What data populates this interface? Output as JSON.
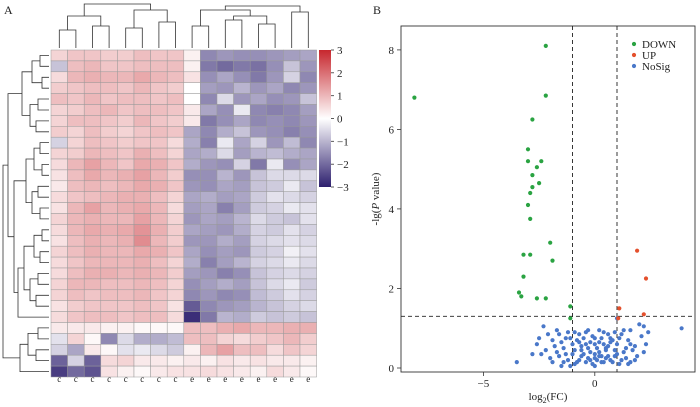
{
  "panels": {
    "a_label": "A",
    "b_label": "B"
  },
  "chart_data": [
    {
      "type": "heatmap",
      "title": "",
      "rows": 30,
      "columns": 16,
      "column_labels": [
        "c",
        "c",
        "c",
        "c",
        "c",
        "c",
        "c",
        "c",
        "e",
        "e",
        "e",
        "e",
        "e",
        "e",
        "e",
        "e"
      ],
      "colorbar": {
        "min": -3,
        "max": 3,
        "ticks": [
          3,
          2,
          1,
          0,
          -1,
          -2,
          -3
        ],
        "tick_labels": [
          "3",
          "2",
          "1",
          "0",
          "−1",
          "−2",
          "−3"
        ]
      },
      "colors": {
        "low": "#2d1f6e",
        "mid": "#ffffff",
        "high": "#c7272e"
      },
      "values": [
        [
          0.6,
          0.8,
          0.8,
          0.7,
          0.7,
          0.9,
          0.8,
          0.8,
          0.2,
          -1.6,
          -1.4,
          -1.5,
          -1.5,
          -1.4,
          -1.3,
          -1.2
        ],
        [
          -0.8,
          0.9,
          1.0,
          0.8,
          0.8,
          0.9,
          0.9,
          0.9,
          0.2,
          -1.8,
          -2.0,
          -1.8,
          -1.9,
          -1.5,
          -0.8,
          -1.4
        ],
        [
          0.5,
          1.0,
          1.1,
          1.0,
          1.0,
          1.2,
          1.0,
          0.9,
          0.4,
          -1.5,
          -1.2,
          -1.5,
          -1.8,
          -1.4,
          -0.6,
          -1.6
        ],
        [
          0.7,
          0.8,
          0.9,
          0.9,
          0.8,
          1.0,
          0.8,
          0.7,
          0.0,
          -1.3,
          -1.4,
          -1.0,
          -1.4,
          -1.2,
          -1.6,
          -1.4
        ],
        [
          0.9,
          0.8,
          1.0,
          0.8,
          0.9,
          0.9,
          0.8,
          0.9,
          0.0,
          -1.6,
          -0.5,
          -1.4,
          -1.2,
          -1.5,
          -1.4,
          -0.8
        ],
        [
          0.6,
          0.7,
          0.9,
          1.0,
          0.8,
          0.9,
          0.9,
          0.8,
          0.3,
          -1.2,
          -1.5,
          -0.3,
          -1.6,
          -1.7,
          -1.6,
          -1.3
        ],
        [
          0.6,
          0.9,
          0.9,
          0.8,
          0.7,
          1.0,
          0.8,
          0.7,
          0.3,
          -1.8,
          -1.5,
          -1.2,
          -1.6,
          -1.5,
          -1.6,
          -1.4
        ],
        [
          0.7,
          0.6,
          0.9,
          0.7,
          0.6,
          0.8,
          0.9,
          0.8,
          -1.2,
          -1.6,
          -1.1,
          -0.8,
          -1.4,
          -1.5,
          -1.7,
          -1.5
        ],
        [
          -0.6,
          0.6,
          0.9,
          0.8,
          0.7,
          0.8,
          0.8,
          0.5,
          -1.1,
          -1.7,
          -0.3,
          -1.2,
          -0.6,
          -1.4,
          -0.9,
          -1.6
        ],
        [
          0.6,
          0.7,
          1.0,
          0.9,
          0.8,
          1.1,
          0.9,
          0.6,
          -1.2,
          -1.1,
          -0.5,
          -1.3,
          -1.0,
          -0.9,
          -1.1,
          -1.2
        ],
        [
          0.5,
          1.0,
          1.3,
          1.0,
          0.8,
          1.2,
          1.1,
          0.8,
          -1.1,
          -1.4,
          -1.5,
          -0.6,
          -1.8,
          -0.3,
          -1.5,
          -1.2
        ],
        [
          0.4,
          0.9,
          1.2,
          1.0,
          1.1,
          1.3,
          1.0,
          0.7,
          -1.5,
          -1.5,
          -1.0,
          -1.4,
          -0.8,
          -0.5,
          -0.5,
          -0.5
        ],
        [
          0.3,
          0.9,
          1.0,
          0.9,
          1.0,
          1.2,
          1.1,
          0.8,
          -1.4,
          -1.5,
          -1.2,
          -1.3,
          -0.8,
          -0.7,
          -0.3,
          -0.8
        ],
        [
          0.5,
          0.8,
          0.9,
          1.0,
          1.1,
          1.1,
          0.9,
          0.6,
          -1.2,
          -1.1,
          -1.3,
          -1.2,
          -0.7,
          -0.4,
          -0.5,
          -0.6
        ],
        [
          0.4,
          1.0,
          1.3,
          1.0,
          1.1,
          1.2,
          1.0,
          0.5,
          -1.3,
          -1.2,
          -1.7,
          -1.3,
          -0.7,
          -0.6,
          -0.3,
          -0.4
        ],
        [
          0.6,
          1.0,
          1.1,
          1.0,
          1.0,
          1.3,
          1.0,
          0.6,
          -1.4,
          -1.2,
          -1.3,
          -1.0,
          -0.5,
          -0.7,
          -0.8,
          -0.4
        ],
        [
          0.5,
          1.0,
          1.2,
          1.1,
          1.2,
          1.5,
          1.1,
          0.7,
          -1.2,
          -1.3,
          -1.4,
          -1.1,
          -0.6,
          -0.7,
          -0.4,
          -0.6
        ],
        [
          0.4,
          0.9,
          1.1,
          1.0,
          1.1,
          1.6,
          1.0,
          0.7,
          -1.4,
          -1.4,
          -1.1,
          -1.3,
          -0.6,
          -0.5,
          -0.4,
          -0.5
        ],
        [
          0.6,
          0.9,
          1.1,
          1.0,
          1.0,
          1.2,
          1.1,
          0.8,
          -1.2,
          -1.5,
          -1.3,
          -1.4,
          -0.7,
          -0.6,
          -0.2,
          -0.4
        ],
        [
          0.5,
          0.8,
          1.0,
          1.0,
          1.0,
          1.1,
          0.9,
          0.6,
          -1.1,
          -1.7,
          -1.3,
          -1.0,
          -0.6,
          -0.5,
          -0.3,
          -0.5
        ],
        [
          0.5,
          0.9,
          1.1,
          1.1,
          1.0,
          1.1,
          1.0,
          0.7,
          -1.3,
          -1.4,
          -1.7,
          -1.5,
          -0.8,
          -0.6,
          -0.5,
          -0.6
        ],
        [
          0.6,
          1.0,
          1.0,
          0.9,
          0.9,
          1.0,
          0.9,
          0.6,
          -1.5,
          -1.3,
          -1.1,
          -1.3,
          -0.8,
          -0.5,
          -0.3,
          -0.7
        ],
        [
          0.6,
          0.9,
          0.8,
          0.9,
          0.9,
          1.0,
          0.8,
          0.6,
          -1.6,
          -1.4,
          -1.6,
          -1.5,
          -0.9,
          -0.7,
          -0.4,
          -0.6
        ],
        [
          0.4,
          0.7,
          0.8,
          0.8,
          0.8,
          0.9,
          0.8,
          0.4,
          -2.2,
          -1.6,
          -1.4,
          -1.3,
          -1.0,
          -0.8,
          -0.6,
          -0.5
        ],
        [
          0.5,
          0.8,
          0.9,
          0.9,
          0.8,
          0.9,
          0.9,
          0.5,
          -2.8,
          -1.8,
          -1.0,
          -1.1,
          -0.7,
          -0.8,
          -0.7,
          -0.8
        ],
        [
          0.3,
          0.3,
          0.3,
          0.2,
          0.2,
          0.1,
          0.1,
          0.1,
          0.9,
          0.9,
          1.1,
          1.2,
          1.0,
          1.0,
          1.1,
          1.1
        ],
        [
          -0.4,
          0.6,
          0.1,
          -1.6,
          -0.5,
          -1.1,
          -1.1,
          -0.9,
          0.9,
          0.9,
          0.6,
          0.5,
          0.7,
          0.8,
          1.0,
          0.7
        ],
        [
          -0.6,
          -1.2,
          0.3,
          0.1,
          -0.4,
          -0.3,
          -0.5,
          -0.7,
          0.2,
          1.0,
          1.3,
          0.9,
          0.9,
          0.5,
          0.8,
          0.6
        ],
        [
          -2.1,
          -0.6,
          -2.1,
          0.5,
          0.6,
          0.3,
          0.3,
          0.2,
          0.3,
          0.2,
          0.4,
          0.3,
          0.4,
          0.3,
          0.3,
          0.2
        ],
        [
          -2.6,
          -2.0,
          -2.3,
          0.4,
          0.2,
          0.1,
          0.3,
          0.4,
          0.4,
          0.5,
          0.4,
          0.3,
          0.2,
          0.5,
          0.3,
          0.1
        ]
      ]
    },
    {
      "type": "scatter",
      "title": "",
      "xlabel": "log2(FC)",
      "ylabel": "-lg(P value)",
      "xlim": [
        -8.7,
        4.5
      ],
      "ylim": [
        -0.1,
        8.6
      ],
      "xticks": [
        -5,
        0
      ],
      "yticks": [
        0,
        2,
        4,
        6,
        8
      ],
      "thresholds": {
        "x": [
          -1,
          1
        ],
        "y": 1.3
      },
      "legend_position": "top-right",
      "series": [
        {
          "name": "DOWN",
          "color": "#2aa342",
          "points": [
            [
              -8.1,
              6.8
            ],
            [
              -2.2,
              8.1
            ],
            [
              -2.2,
              6.85
            ],
            [
              -2.8,
              6.25
            ],
            [
              -2.4,
              5.2
            ],
            [
              -2.6,
              5.05
            ],
            [
              -3.0,
              5.5
            ],
            [
              -3.0,
              5.2
            ],
            [
              -2.8,
              4.85
            ],
            [
              -2.5,
              4.65
            ],
            [
              -2.8,
              4.55
            ],
            [
              -2.9,
              4.4
            ],
            [
              -3.0,
              4.1
            ],
            [
              -2.9,
              3.75
            ],
            [
              -3.2,
              2.85
            ],
            [
              -2.9,
              2.85
            ],
            [
              -2.0,
              3.15
            ],
            [
              -1.9,
              2.7
            ],
            [
              -3.2,
              2.3
            ],
            [
              -3.4,
              1.9
            ],
            [
              -2.2,
              1.75
            ],
            [
              -2.6,
              1.75
            ],
            [
              -3.3,
              1.8
            ],
            [
              -1.1,
              1.55
            ],
            [
              -1.1,
              1.25
            ]
          ]
        },
        {
          "name": "UP",
          "color": "#e4502d",
          "points": [
            [
              1.9,
              2.95
            ],
            [
              2.3,
              2.25
            ],
            [
              2.2,
              1.35
            ],
            [
              1.1,
              1.5
            ],
            [
              1.05,
              1.25
            ]
          ]
        },
        {
          "name": "NoSig",
          "color": "#4a78c9",
          "points": [
            [
              3.9,
              1.0
            ],
            [
              2.2,
              1.05
            ],
            [
              2.0,
              1.1
            ],
            [
              1.3,
              0.95
            ],
            [
              1.0,
              1.25
            ],
            [
              0.7,
              0.75
            ],
            [
              0.5,
              0.5
            ],
            [
              0.2,
              0.3
            ],
            [
              -0.2,
              0.2
            ],
            [
              -0.6,
              0.45
            ],
            [
              -1.2,
              0.9
            ],
            [
              -1.7,
              0.95
            ],
            [
              -2.3,
              1.05
            ],
            [
              -2.1,
              0.85
            ],
            [
              -1.9,
              0.7
            ],
            [
              -2.5,
              0.75
            ],
            [
              -3.5,
              0.15
            ],
            [
              -2.8,
              0.35
            ],
            [
              -1.5,
              0.05
            ],
            [
              -0.9,
              0.1
            ],
            [
              0.0,
              0.05
            ],
            [
              0.3,
              0.15
            ],
            [
              0.9,
              0.3
            ],
            [
              1.4,
              0.25
            ],
            [
              1.6,
              0.15
            ],
            [
              2.1,
              0.8
            ],
            [
              2.4,
              0.9
            ],
            [
              -0.3,
              0.95
            ],
            [
              0.2,
              0.95
            ],
            [
              -0.7,
              0.85
            ],
            [
              0.6,
              0.85
            ],
            [
              0.0,
              0.6
            ],
            [
              -0.4,
              0.6
            ],
            [
              0.4,
              0.6
            ],
            [
              -1.0,
              0.6
            ],
            [
              1.0,
              0.6
            ],
            [
              -1.4,
              0.5
            ],
            [
              1.4,
              0.5
            ],
            [
              -0.2,
              0.4
            ],
            [
              0.2,
              0.4
            ],
            [
              -0.6,
              0.3
            ],
            [
              0.6,
              0.3
            ],
            [
              -1.0,
              0.35
            ],
            [
              1.0,
              0.35
            ],
            [
              -1.6,
              0.3
            ],
            [
              1.7,
              0.45
            ],
            [
              0.0,
              0.25
            ],
            [
              -0.4,
              0.15
            ],
            [
              0.4,
              0.15
            ],
            [
              -1.2,
              0.2
            ],
            [
              1.2,
              0.2
            ],
            [
              -0.8,
              0.7
            ],
            [
              0.8,
              0.7
            ],
            [
              -1.8,
              0.55
            ],
            [
              1.8,
              0.55
            ],
            [
              -2.2,
              0.45
            ],
            [
              -0.1,
              0.8
            ],
            [
              0.3,
              0.75
            ],
            [
              -0.5,
              0.75
            ],
            [
              1.2,
              0.85
            ],
            [
              -1.3,
              0.75
            ],
            [
              0.1,
              0.5
            ],
            [
              -0.3,
              0.5
            ],
            [
              0.5,
              0.45
            ],
            [
              -0.9,
              0.45
            ],
            [
              0.9,
              0.45
            ],
            [
              -1.5,
              0.65
            ],
            [
              1.5,
              0.7
            ],
            [
              0.0,
              0.35
            ],
            [
              -0.7,
              0.2
            ],
            [
              0.7,
              0.2
            ],
            [
              -1.1,
              0.05
            ],
            [
              1.1,
              0.1
            ],
            [
              -2.0,
              0.25
            ],
            [
              1.9,
              0.3
            ],
            [
              -0.2,
              0.65
            ],
            [
              0.2,
              0.65
            ],
            [
              -0.6,
              0.55
            ],
            [
              0.6,
              0.55
            ],
            [
              -1.1,
              0.75
            ],
            [
              1.1,
              0.75
            ],
            [
              -1.7,
              0.4
            ],
            [
              1.6,
              0.6
            ],
            [
              -2.6,
              0.6
            ],
            [
              2.3,
              0.6
            ],
            [
              -0.4,
              0.9
            ],
            [
              0.4,
              0.9
            ],
            [
              -0.8,
              0.15
            ],
            [
              0.8,
              0.15
            ],
            [
              -0.1,
              0.1
            ],
            [
              0.1,
              0.2
            ],
            [
              -1.3,
              0.35
            ],
            [
              1.3,
              0.4
            ],
            [
              -1.9,
              0.15
            ],
            [
              1.8,
              0.2
            ],
            [
              -2.4,
              0.35
            ],
            [
              2.2,
              0.4
            ],
            [
              -0.5,
              0.35
            ],
            [
              0.5,
              0.25
            ],
            [
              -0.9,
              0.9
            ],
            [
              0.9,
              0.9
            ],
            [
              -1.6,
              0.85
            ],
            [
              1.6,
              0.95
            ],
            [
              -0.3,
              0.25
            ],
            [
              0.3,
              0.3
            ],
            [
              -1.4,
              0.15
            ],
            [
              1.5,
              0.1
            ],
            [
              0.0,
              0.75
            ],
            [
              -0.7,
              0.65
            ],
            [
              0.7,
              0.65
            ]
          ]
        }
      ]
    }
  ]
}
